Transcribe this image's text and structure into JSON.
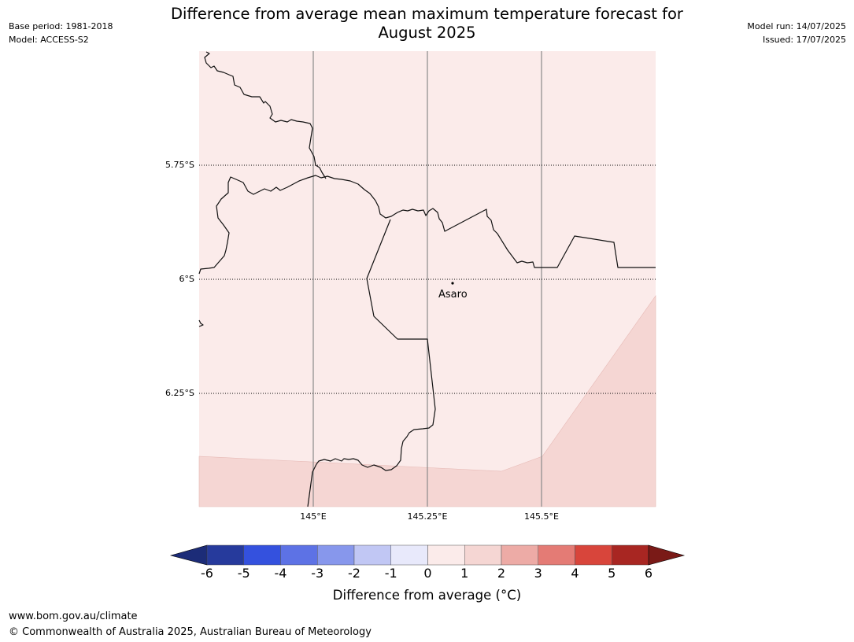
{
  "header": {
    "title_line1": "Difference from average mean maximum temperature forecast for",
    "title_line2": "August 2025",
    "base_period": "Base period: 1981-2018",
    "model": "Model: ACCESS-S2",
    "model_run": "Model run: 14/07/2025",
    "issued": "Issued: 17/07/2025"
  },
  "map": {
    "lat_labels": [
      "5.75°S",
      "6°S",
      "6.25°S"
    ],
    "lon_labels": [
      "145°E",
      "145.25°E",
      "145.5°E"
    ],
    "place": {
      "name": "Asaro",
      "lon": 145.3,
      "lat": -6.01
    },
    "zones": [
      {
        "range": "0 to 1",
        "color": "#fbebea"
      },
      {
        "range": "1 to 2",
        "color": "#f5d6d3"
      }
    ]
  },
  "colorbar": {
    "ticks": [
      "-6",
      "-5",
      "-4",
      "-3",
      "-2",
      "-1",
      "0",
      "1",
      "2",
      "3",
      "4",
      "5",
      "6"
    ],
    "colors": [
      "#263a9c",
      "#3451de",
      "#5d72e5",
      "#8797ec",
      "#c1c7f4",
      "#e8e9fb",
      "#fbebea",
      "#f5d6d3",
      "#edaba6",
      "#e47b75",
      "#d8453b",
      "#a82622"
    ],
    "under_color": "#1c2c78",
    "over_color": "#7a1a17",
    "label": "Difference from average ($^\\circ$C)",
    "label_display": "Difference from average (°C)"
  },
  "footer": {
    "url": "www.bom.gov.au/climate",
    "copyright": "© Commonwealth of Australia 2025, Australian Bureau of Meteorology"
  }
}
